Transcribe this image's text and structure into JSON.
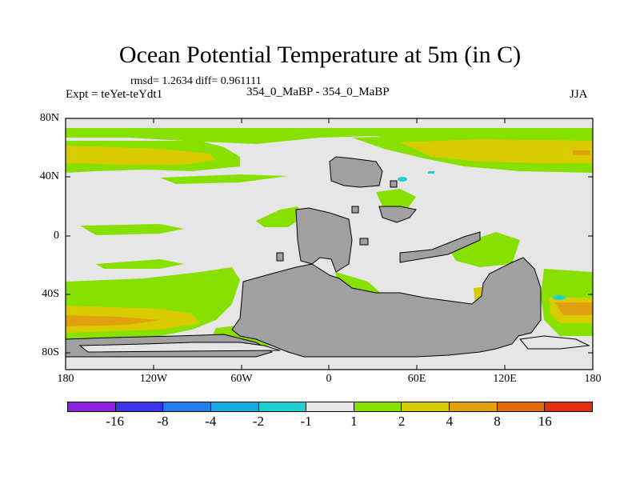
{
  "title": "Ocean Potential Temperature at 5m (in C)",
  "stats": "rmsd= 1.2634 diff= 0.961111",
  "expt": "Expt = teYet-teYdt1",
  "center_label": "354_0_MaBP - 354_0_MaBP",
  "season": "JJA",
  "lat_labels": [
    "80N",
    "40N",
    "0",
    "40S",
    "80S"
  ],
  "lon_labels": [
    "180",
    "120W",
    "60W",
    "0",
    "60E",
    "120E",
    "180"
  ],
  "colorbar": {
    "labels": [
      "-16",
      "-8",
      "-4",
      "-2",
      "-1",
      "1",
      "2",
      "4",
      "8",
      "16"
    ],
    "colors": [
      "#8a22e0",
      "#3a35e6",
      "#1f7fe8",
      "#1aa8e0",
      "#20d0d0",
      "#e6e6e6",
      "#88e000",
      "#d8cc00",
      "#e0a010",
      "#e06a08",
      "#e03010"
    ]
  },
  "colors": {
    "land": "#a0a0a0",
    "zero": "#e6e6e6",
    "band_1_2": "#88e000",
    "band_2_4": "#d8cc00",
    "band_4_8": "#e0a010",
    "band_8_16": "#e06a08",
    "neg_1_2": "#20d0d0"
  }
}
